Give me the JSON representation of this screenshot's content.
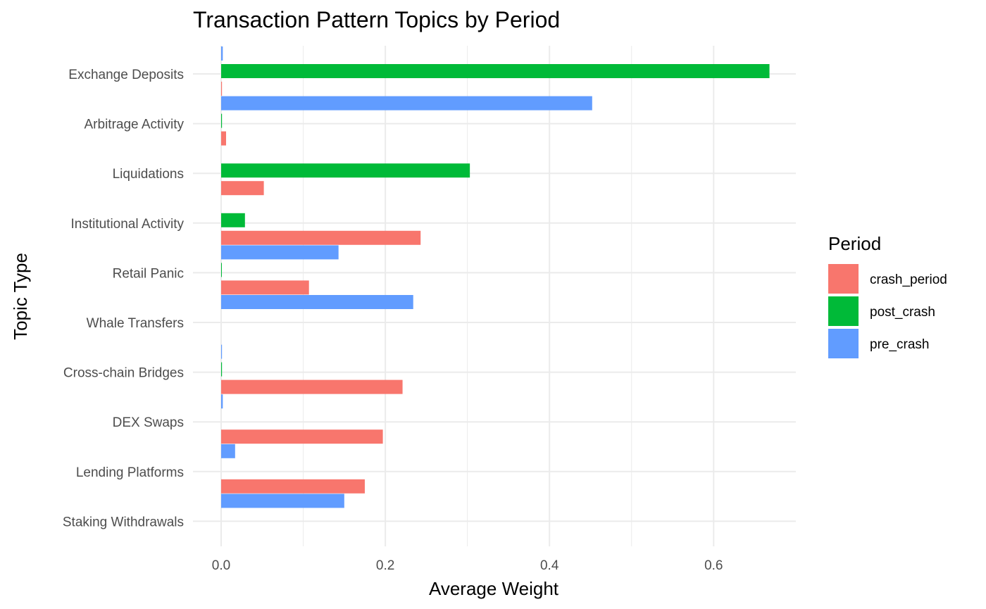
{
  "chart_data": {
    "type": "bar",
    "orientation": "horizontal",
    "title": "Transaction Pattern Topics by Period",
    "xlabel": "Average Weight",
    "ylabel": "Topic Type",
    "xlim": [
      -0.035,
      0.7
    ],
    "x_ticks": [
      0.0,
      0.2,
      0.4,
      0.6
    ],
    "x_tick_labels": [
      "0.0",
      "0.2",
      "0.4",
      "0.6"
    ],
    "grid": true,
    "legend_title": "Period",
    "legend_position": "right",
    "categories": [
      "Exchange Deposits",
      "Arbitrage Activity",
      "Liquidations",
      "Institutional Activity",
      "Retail Panic",
      "Whale Transfers",
      "Cross-chain Bridges",
      "DEX Swaps",
      "Lending Platforms",
      "Staking Withdrawals"
    ],
    "series": [
      {
        "name": "crash_period",
        "color": "#F8766D",
        "values": [
          0.001,
          0.006,
          0.052,
          0.243,
          0.107,
          null,
          0.221,
          0.197,
          0.175,
          null
        ]
      },
      {
        "name": "post_crash",
        "color": "#00BA38",
        "values": [
          0.668,
          0.001,
          0.303,
          0.029,
          0.0005,
          null,
          0.001,
          null,
          null,
          null
        ]
      },
      {
        "name": "pre_crash",
        "color": "#619CFF",
        "values": [
          0.002,
          0.452,
          null,
          null,
          0.143,
          0.234,
          0.001,
          0.002,
          0.017,
          0.15
        ]
      }
    ]
  }
}
